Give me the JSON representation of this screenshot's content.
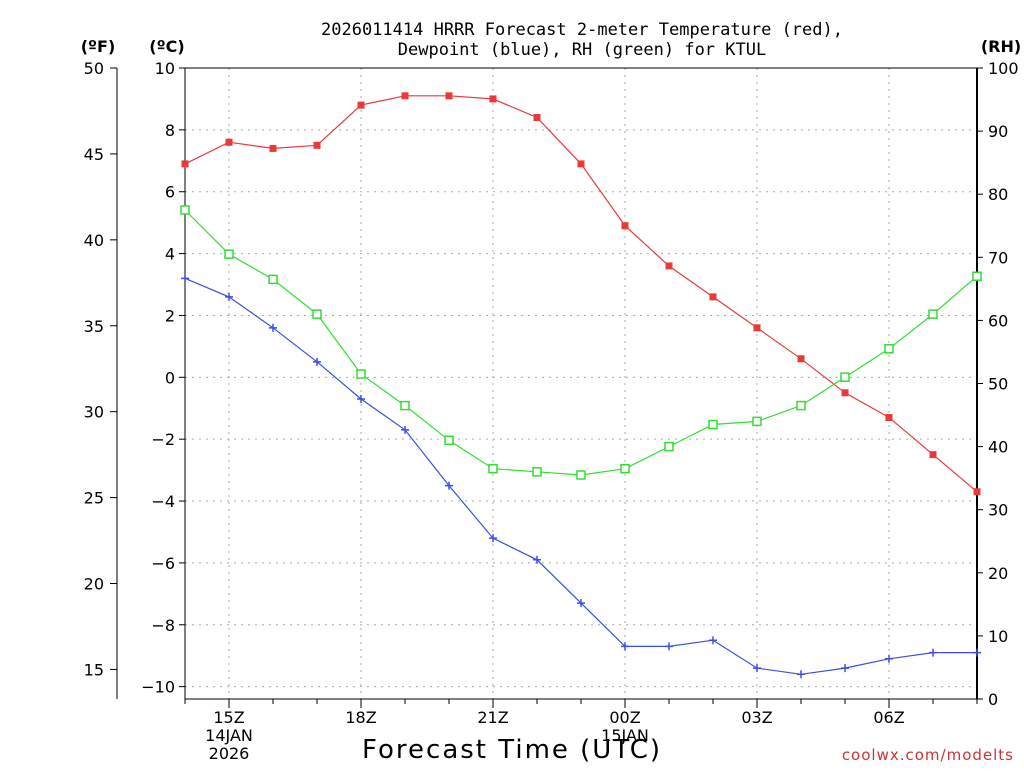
{
  "chart_data": {
    "type": "line",
    "title_line1": "2026011414 HRRR Forecast 2-meter Temperature (red),",
    "title_line2": "Dewpoint (blue), RH (green) for KTUL",
    "left_outer_unit": "(ºF)",
    "left_inner_unit": "(ºC)",
    "right_unit": "(RH)",
    "xlabel": "Forecast Time (UTC)",
    "watermark": "coolwx.com/modelts",
    "celsius_range": [
      -10,
      10
    ],
    "celsius_axis_min": -10.4,
    "celsius_axis_max": 10,
    "fahrenheit_range": [
      15,
      50
    ],
    "rh_range": [
      0,
      100
    ],
    "fahrenheit_ticks": [
      "50",
      "45",
      "40",
      "35",
      "30",
      "25",
      "20",
      "15"
    ],
    "celsius_ticks": [
      "10",
      "8",
      "6",
      "4",
      "2",
      "0",
      "−2",
      "−4",
      "−6",
      "−8",
      "−10"
    ],
    "rh_ticks": [
      "100",
      "90",
      "80",
      "70",
      "60",
      "50",
      "40",
      "30",
      "20",
      "10",
      "0"
    ],
    "x_hours": [
      14,
      15,
      16,
      17,
      18,
      19,
      20,
      21,
      22,
      23,
      24,
      25,
      26,
      27,
      28,
      29,
      30,
      31,
      32
    ],
    "x_ticks": [
      {
        "hour": 15,
        "label": "15Z",
        "sub1": "14JAN",
        "sub2": "2026"
      },
      {
        "hour": 18,
        "label": "18Z",
        "sub1": "",
        "sub2": ""
      },
      {
        "hour": 21,
        "label": "21Z",
        "sub1": "",
        "sub2": ""
      },
      {
        "hour": 24,
        "label": "00Z",
        "sub1": "15JAN",
        "sub2": ""
      },
      {
        "hour": 27,
        "label": "03Z",
        "sub1": "",
        "sub2": ""
      },
      {
        "hour": 30,
        "label": "06Z",
        "sub1": "",
        "sub2": ""
      }
    ],
    "series": [
      {
        "name": "2-meter Temperature",
        "units": "C",
        "color": "#e83a3a",
        "marker": "filled-square",
        "values": [
          6.9,
          7.6,
          7.4,
          7.5,
          8.8,
          9.1,
          9.1,
          9.0,
          8.4,
          6.9,
          4.9,
          3.6,
          2.6,
          1.6,
          0.6,
          -0.5,
          -1.3,
          -2.5,
          -3.7
        ]
      },
      {
        "name": "Dewpoint",
        "units": "C",
        "color": "#3a4ee8",
        "marker": "plus",
        "values": [
          3.2,
          2.6,
          1.6,
          0.5,
          -0.7,
          -1.7,
          -3.5,
          -5.2,
          -5.9,
          -7.3,
          -8.7,
          -8.7,
          -8.5,
          -9.4,
          -9.6,
          -9.4,
          -9.1,
          -8.9,
          -8.9
        ]
      },
      {
        "name": "RH",
        "units": "%",
        "color": "#33dd33",
        "marker": "open-square",
        "values": [
          77.5,
          70.5,
          66.5,
          61,
          51.5,
          46.5,
          41,
          36.5,
          36,
          35.5,
          36.5,
          40,
          43.5,
          44,
          46.5,
          51,
          55.5,
          61,
          67
        ]
      }
    ]
  }
}
